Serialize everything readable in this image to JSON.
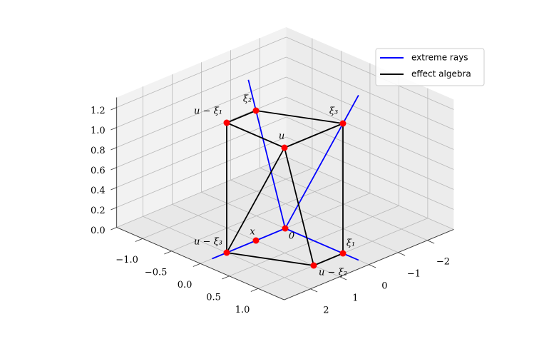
{
  "chart_data": {
    "type": "line3d",
    "xlim": [
      -1.45,
      1.45
    ],
    "ylim": [
      -2.9,
      2.9
    ],
    "zlim": [
      0,
      1.3
    ],
    "xticks": [
      {
        "value": -1,
        "label": "−1.0"
      },
      {
        "value": -0.5,
        "label": "−0.5"
      },
      {
        "value": 0,
        "label": "0.0"
      },
      0.5,
      {
        "value": 1,
        "label": "1.0"
      }
    ],
    "yticks": [
      {
        "value": -2,
        "label": "−2"
      },
      {
        "value": -1,
        "label": "−1"
      },
      0,
      1,
      2
    ],
    "zticks": [
      {
        "value": 0,
        "label": "0.0"
      },
      0.2,
      0.4,
      0.6,
      0.8,
      {
        "value": 1,
        "label": "1.0"
      },
      1.2
    ],
    "grid": true,
    "legend": "upper right",
    "series": [
      {
        "name": "extreme rays",
        "color": "#0000ff",
        "x": [
          0,
          1.27,
          null,
          0,
          0,
          null,
          0,
          0,
          null,
          0,
          1.27
        ],
        "y": [
          0,
          0,
          null,
          0,
          2.5,
          null,
          0,
          1.26,
          null,
          0,
          0
        ],
        "z": [
          0,
          0,
          null,
          0,
          0,
          null,
          0,
          1.64,
          null,
          0,
          1.65
        ]
      },
      {
        "name": "effect algebra",
        "color": "#000000",
        "x": [
          0,
          0,
          1,
          1,
          0,
          null,
          0,
          0,
          1,
          1,
          1,
          null,
          0,
          1,
          1
        ],
        "y": [
          1,
          2,
          2,
          0,
          1,
          null,
          2,
          2,
          1,
          0,
          0,
          null,
          2,
          2,
          1
        ],
        "z": [
          1.3,
          1.3,
          1.3,
          1.3,
          1.3,
          null,
          1.3,
          0,
          0,
          0,
          1.3,
          null,
          0,
          1.3,
          0
        ]
      }
    ],
    "points": {
      "color": "#ff0000",
      "labels": [
        "0",
        "x",
        "ξ₁",
        "u − ξ₂",
        "u − ξ₃",
        "ξ₂",
        "ξ₃",
        "u − ξ₁",
        "u"
      ],
      "x": [
        0,
        0,
        1,
        1,
        0,
        0,
        1,
        0,
        1
      ],
      "y": [
        0,
        1,
        0,
        1,
        2,
        1,
        0,
        2,
        2
      ],
      "z": [
        0,
        0,
        0,
        0,
        0,
        1.3,
        1.3,
        1.3,
        1.3
      ]
    }
  }
}
